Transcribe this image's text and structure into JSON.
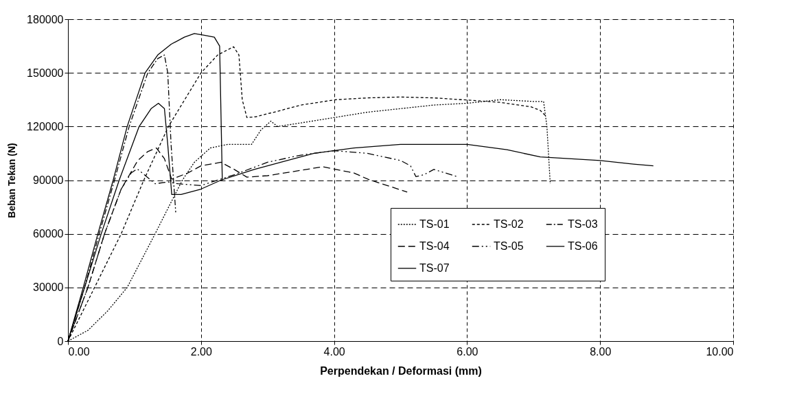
{
  "chart_data": {
    "type": "line",
    "xlabel": "Perpendekan / Deformasi (mm)",
    "ylabel": "Beban Tekan (N)",
    "xlim": [
      0,
      10
    ],
    "xticks": [
      {
        "value": 0,
        "label": "0.00"
      },
      {
        "value": 2,
        "label": "2.00"
      },
      {
        "value": 4,
        "label": "4.00"
      },
      {
        "value": 6,
        "label": "6.00"
      },
      {
        "value": 8,
        "label": "8.00"
      },
      {
        "value": 10,
        "label": "10.00"
      }
    ],
    "ylim": [
      0,
      180000
    ],
    "yticks": [
      0,
      30000,
      60000,
      90000,
      120000,
      150000,
      180000
    ],
    "grid": true,
    "legend": "bottom right",
    "marker": "none",
    "series": [
      {
        "name": "TS-01",
        "color": "#000000",
        "line_style": "dotted",
        "x": [
          0,
          0.3,
          0.6,
          0.89,
          1.1,
          1.31,
          1.5,
          1.72,
          1.9,
          2.14,
          2.4,
          2.76,
          2.9,
          3.05,
          3.15,
          3.5,
          4.0,
          4.5,
          5.0,
          5.5,
          6.0,
          6.5,
          7.0,
          7.15,
          7.2,
          7.25
        ],
        "values": [
          0,
          6000,
          17000,
          30000,
          45000,
          60000,
          74000,
          90000,
          100000,
          108000,
          110000,
          110000,
          118000,
          123000,
          120000,
          122000,
          125000,
          128000,
          130000,
          132000,
          133000,
          135000,
          134000,
          134000,
          120000,
          88000
        ]
      },
      {
        "name": "TS-02",
        "color": "#000000",
        "line_style": "dashed",
        "x": [
          0,
          0.4,
          0.8,
          1.14,
          1.51,
          2.0,
          2.25,
          2.49,
          2.57,
          2.62,
          2.69,
          2.83,
          3.2,
          3.5,
          4.03,
          4.5,
          5.0,
          5.5,
          6.0,
          6.5,
          6.96,
          7.1,
          7.18
        ],
        "values": [
          0,
          30000,
          60000,
          90000,
          120000,
          150000,
          160000,
          164600,
          160000,
          135000,
          125000,
          125500,
          129000,
          132000,
          135000,
          136000,
          136500,
          136000,
          134800,
          133500,
          131000,
          129000,
          126000
        ]
      },
      {
        "name": "TS-03",
        "color": "#000000",
        "line_style": "dashed",
        "x": [
          0,
          0.25,
          0.47,
          0.7,
          0.92,
          1.2,
          1.35,
          1.45,
          1.5,
          1.55,
          1.62
        ],
        "values": [
          0,
          30000,
          60000,
          90000,
          120000,
          150000,
          158000,
          160000,
          150000,
          110000,
          72000
        ]
      },
      {
        "name": "TS-04",
        "color": "#000000",
        "line_style": "dashed",
        "x": [
          0,
          0.3,
          0.55,
          0.8,
          1.05,
          1.2,
          1.33,
          1.45,
          1.56,
          1.8,
          2.0,
          2.3,
          2.5,
          2.69,
          3.0,
          3.5,
          3.83,
          4.03,
          4.3,
          4.51,
          4.8,
          5.1
        ],
        "values": [
          0,
          30000,
          60000,
          85000,
          101000,
          106000,
          108000,
          102000,
          90500,
          94000,
          98000,
          100000,
          96000,
          91700,
          92500,
          95500,
          97500,
          96000,
          94000,
          90500,
          87000,
          83300
        ]
      },
      {
        "name": "TS-05",
        "color": "#000000",
        "line_style": "dashed",
        "x": [
          0,
          0.3,
          0.55,
          0.8,
          0.95,
          1.04,
          1.15,
          1.31,
          1.5,
          1.65,
          2.0,
          2.5,
          3.0,
          3.5,
          4.0,
          4.5,
          5.0,
          5.15,
          5.23,
          5.35,
          5.5,
          5.85
        ],
        "values": [
          0,
          30000,
          60000,
          85000,
          94000,
          96300,
          93000,
          88000,
          89000,
          88000,
          87000,
          93000,
          100000,
          104000,
          106500,
          105000,
          101000,
          98000,
          92000,
          93000,
          96000,
          92000
        ]
      },
      {
        "name": "TS-06",
        "color": "#000000",
        "line_style": "solid",
        "x": [
          0,
          0.25,
          0.5,
          0.77,
          1.07,
          1.25,
          1.36,
          1.45,
          1.5,
          1.56,
          1.7,
          2.0,
          2.3,
          2.8,
          3.2,
          3.7,
          4.3,
          5.0,
          6.0,
          6.6,
          7.1,
          8.0,
          8.5,
          8.8
        ],
        "values": [
          0,
          30000,
          60000,
          90000,
          120000,
          130000,
          133000,
          130000,
          110000,
          82000,
          82000,
          85000,
          90000,
          96000,
          100000,
          105000,
          108000,
          110000,
          110000,
          107000,
          103000,
          101000,
          99000,
          98000
        ]
      },
      {
        "name": "TS-07",
        "color": "#000000",
        "line_style": "solid",
        "x": [
          0,
          0.23,
          0.45,
          0.68,
          0.89,
          1.16,
          1.35,
          1.55,
          1.75,
          1.9,
          2.05,
          2.2,
          2.28,
          2.32
        ],
        "values": [
          0,
          30000,
          60000,
          90000,
          120000,
          150000,
          160000,
          166000,
          170000,
          172000,
          171000,
          170000,
          165000,
          90000
        ]
      }
    ]
  }
}
